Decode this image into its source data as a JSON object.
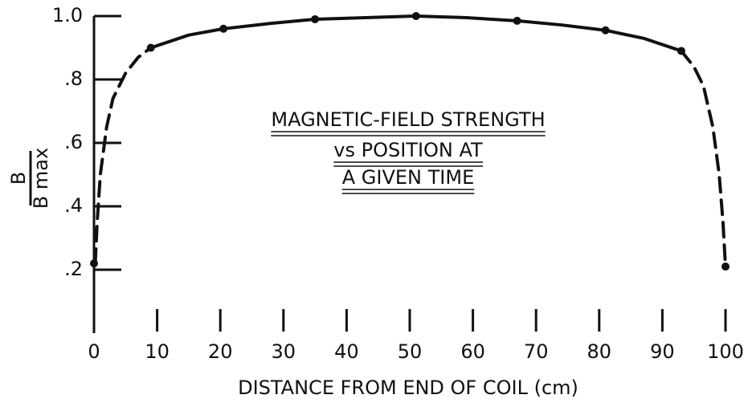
{
  "chart_data": {
    "type": "line",
    "title_lines": [
      "MAGNETIC-FIELD STRENGTH",
      "vs POSITION AT",
      "A GIVEN TIME"
    ],
    "x_label": "DISTANCE FROM END OF COIL (cm)",
    "y_label": {
      "numerator": "B",
      "denominator": "B max"
    },
    "xlim": [
      0,
      100
    ],
    "ylim": [
      0,
      1.0
    ],
    "xticks": [
      0,
      10,
      20,
      30,
      40,
      50,
      60,
      70,
      80,
      90,
      100
    ],
    "yticks": [
      {
        "value": 0.2,
        "label": ".2"
      },
      {
        "value": 0.4,
        "label": ".4"
      },
      {
        "value": 0.6,
        "label": ".6"
      },
      {
        "value": 0.8,
        "label": ".8"
      },
      {
        "value": 1.0,
        "label": "1.0"
      }
    ],
    "color": "#111111",
    "points": {
      "x": [
        0,
        9,
        20.5,
        35,
        51,
        67,
        81,
        93,
        100
      ],
      "values": [
        0.22,
        0.9,
        0.96,
        0.99,
        1.0,
        0.985,
        0.955,
        0.89,
        0.21
      ]
    },
    "curve_solid": {
      "x": [
        9,
        15,
        20.5,
        28,
        35,
        43,
        51,
        59,
        67,
        74,
        81,
        87,
        93
      ],
      "values": [
        0.9,
        0.94,
        0.96,
        0.977,
        0.99,
        0.995,
        1.0,
        0.995,
        0.985,
        0.972,
        0.955,
        0.93,
        0.89
      ]
    },
    "curve_dashed_left": {
      "x": [
        0.2,
        0.5,
        1,
        2,
        3,
        5,
        7,
        9
      ],
      "values": [
        0.22,
        0.35,
        0.5,
        0.65,
        0.74,
        0.82,
        0.87,
        0.9
      ]
    },
    "curve_dashed_right": {
      "x": [
        93,
        95,
        96.5,
        98,
        99,
        99.6,
        100
      ],
      "values": [
        0.89,
        0.84,
        0.78,
        0.65,
        0.5,
        0.35,
        0.21
      ]
    }
  }
}
